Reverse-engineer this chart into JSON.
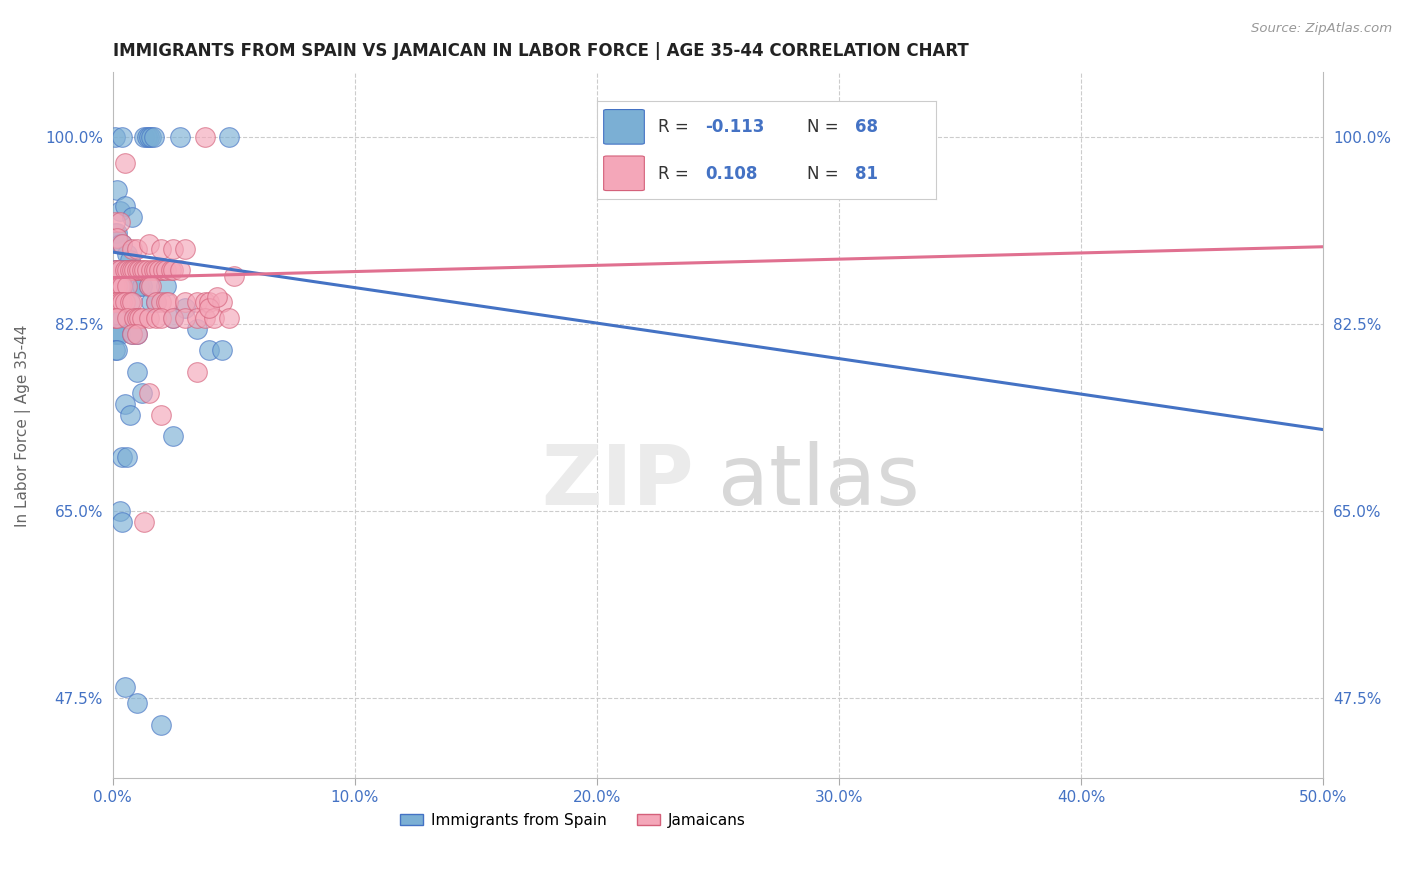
{
  "title": "IMMIGRANTS FROM SPAIN VS JAMAICAN IN LABOR FORCE | AGE 35-44 CORRELATION CHART",
  "source": "Source: ZipAtlas.com",
  "ylabel": "In Labor Force | Age 35-44",
  "xlim": [
    0.0,
    0.5
  ],
  "ylim": [
    0.4,
    1.06
  ],
  "xticks": [
    0.0,
    0.1,
    0.2,
    0.3,
    0.4,
    0.5
  ],
  "xticklabels": [
    "0.0%",
    "10.0%",
    "20.0%",
    "30.0%",
    "40.0%",
    "50.0%"
  ],
  "yticks": [
    0.475,
    0.65,
    0.825,
    1.0
  ],
  "yticklabels": [
    "47.5%",
    "65.0%",
    "82.5%",
    "100.0%"
  ],
  "ytick_color": "#4472c4",
  "xtick_color": "#4472c4",
  "scatter_blue": [
    [
      0.001,
      1.0
    ],
    [
      0.004,
      1.0
    ],
    [
      0.013,
      1.0
    ],
    [
      0.014,
      1.0
    ],
    [
      0.015,
      1.0
    ],
    [
      0.016,
      1.0
    ],
    [
      0.017,
      1.0
    ],
    [
      0.028,
      1.0
    ],
    [
      0.048,
      1.0
    ],
    [
      0.002,
      0.95
    ],
    [
      0.003,
      0.93
    ],
    [
      0.005,
      0.935
    ],
    [
      0.008,
      0.925
    ],
    [
      0.001,
      0.91
    ],
    [
      0.002,
      0.91
    ],
    [
      0.003,
      0.9
    ],
    [
      0.004,
      0.9
    ],
    [
      0.006,
      0.89
    ],
    [
      0.007,
      0.885
    ],
    [
      0.001,
      0.875
    ],
    [
      0.002,
      0.875
    ],
    [
      0.003,
      0.875
    ],
    [
      0.005,
      0.875
    ],
    [
      0.007,
      0.875
    ],
    [
      0.01,
      0.875
    ],
    [
      0.02,
      0.875
    ],
    [
      0.001,
      0.86
    ],
    [
      0.002,
      0.86
    ],
    [
      0.003,
      0.86
    ],
    [
      0.004,
      0.86
    ],
    [
      0.005,
      0.86
    ],
    [
      0.006,
      0.86
    ],
    [
      0.011,
      0.86
    ],
    [
      0.012,
      0.86
    ],
    [
      0.015,
      0.86
    ],
    [
      0.022,
      0.86
    ],
    [
      0.001,
      0.845
    ],
    [
      0.002,
      0.845
    ],
    [
      0.003,
      0.845
    ],
    [
      0.007,
      0.845
    ],
    [
      0.016,
      0.845
    ],
    [
      0.018,
      0.845
    ],
    [
      0.001,
      0.83
    ],
    [
      0.002,
      0.83
    ],
    [
      0.004,
      0.83
    ],
    [
      0.009,
      0.83
    ],
    [
      0.025,
      0.83
    ],
    [
      0.001,
      0.815
    ],
    [
      0.002,
      0.815
    ],
    [
      0.003,
      0.815
    ],
    [
      0.008,
      0.815
    ],
    [
      0.01,
      0.815
    ],
    [
      0.001,
      0.8
    ],
    [
      0.002,
      0.8
    ],
    [
      0.01,
      0.78
    ],
    [
      0.012,
      0.76
    ],
    [
      0.005,
      0.75
    ],
    [
      0.007,
      0.74
    ],
    [
      0.004,
      0.7
    ],
    [
      0.006,
      0.7
    ],
    [
      0.003,
      0.65
    ],
    [
      0.004,
      0.64
    ],
    [
      0.03,
      0.84
    ],
    [
      0.035,
      0.82
    ],
    [
      0.025,
      0.72
    ],
    [
      0.04,
      0.8
    ],
    [
      0.045,
      0.8
    ],
    [
      0.005,
      0.485
    ],
    [
      0.01,
      0.47
    ],
    [
      0.02,
      0.45
    ]
  ],
  "scatter_pink": [
    [
      0.005,
      0.975
    ],
    [
      0.001,
      0.92
    ],
    [
      0.003,
      0.92
    ],
    [
      0.002,
      0.905
    ],
    [
      0.004,
      0.9
    ],
    [
      0.008,
      0.895
    ],
    [
      0.01,
      0.895
    ],
    [
      0.015,
      0.9
    ],
    [
      0.02,
      0.895
    ],
    [
      0.025,
      0.895
    ],
    [
      0.03,
      0.895
    ],
    [
      0.038,
      1.0
    ],
    [
      0.001,
      0.875
    ],
    [
      0.002,
      0.875
    ],
    [
      0.003,
      0.875
    ],
    [
      0.005,
      0.875
    ],
    [
      0.006,
      0.875
    ],
    [
      0.007,
      0.875
    ],
    [
      0.008,
      0.875
    ],
    [
      0.009,
      0.875
    ],
    [
      0.01,
      0.875
    ],
    [
      0.011,
      0.875
    ],
    [
      0.012,
      0.875
    ],
    [
      0.013,
      0.875
    ],
    [
      0.014,
      0.875
    ],
    [
      0.016,
      0.875
    ],
    [
      0.017,
      0.875
    ],
    [
      0.018,
      0.875
    ],
    [
      0.019,
      0.875
    ],
    [
      0.021,
      0.875
    ],
    [
      0.022,
      0.875
    ],
    [
      0.024,
      0.875
    ],
    [
      0.025,
      0.875
    ],
    [
      0.028,
      0.875
    ],
    [
      0.001,
      0.86
    ],
    [
      0.002,
      0.86
    ],
    [
      0.003,
      0.86
    ],
    [
      0.004,
      0.86
    ],
    [
      0.006,
      0.86
    ],
    [
      0.015,
      0.86
    ],
    [
      0.016,
      0.86
    ],
    [
      0.001,
      0.845
    ],
    [
      0.002,
      0.845
    ],
    [
      0.003,
      0.845
    ],
    [
      0.004,
      0.845
    ],
    [
      0.005,
      0.845
    ],
    [
      0.007,
      0.845
    ],
    [
      0.008,
      0.845
    ],
    [
      0.018,
      0.845
    ],
    [
      0.02,
      0.845
    ],
    [
      0.022,
      0.845
    ],
    [
      0.023,
      0.845
    ],
    [
      0.03,
      0.845
    ],
    [
      0.035,
      0.845
    ],
    [
      0.038,
      0.845
    ],
    [
      0.04,
      0.845
    ],
    [
      0.045,
      0.845
    ],
    [
      0.001,
      0.83
    ],
    [
      0.002,
      0.83
    ],
    [
      0.006,
      0.83
    ],
    [
      0.009,
      0.83
    ],
    [
      0.01,
      0.83
    ],
    [
      0.011,
      0.83
    ],
    [
      0.012,
      0.83
    ],
    [
      0.015,
      0.83
    ],
    [
      0.018,
      0.83
    ],
    [
      0.02,
      0.83
    ],
    [
      0.025,
      0.83
    ],
    [
      0.03,
      0.83
    ],
    [
      0.035,
      0.83
    ],
    [
      0.038,
      0.83
    ],
    [
      0.042,
      0.83
    ],
    [
      0.048,
      0.83
    ],
    [
      0.008,
      0.815
    ],
    [
      0.01,
      0.815
    ],
    [
      0.05,
      0.87
    ],
    [
      0.015,
      0.76
    ],
    [
      0.02,
      0.74
    ],
    [
      0.035,
      0.78
    ],
    [
      0.013,
      0.64
    ],
    [
      0.04,
      0.84
    ],
    [
      0.043,
      0.85
    ]
  ],
  "blue_line_x": [
    0.0,
    0.5
  ],
  "blue_line_y": [
    0.892,
    0.726
  ],
  "pink_line_x": [
    0.0,
    0.5
  ],
  "pink_line_y": [
    0.868,
    0.897
  ],
  "blue_color": "#7bafd4",
  "pink_color": "#f4a7b9",
  "blue_line_color": "#4472c4",
  "pink_line_color": "#e07090",
  "grid_color": "#cccccc",
  "background_color": "#ffffff",
  "legend_text_color": "#4472c4",
  "legend_label_color": "#555555"
}
